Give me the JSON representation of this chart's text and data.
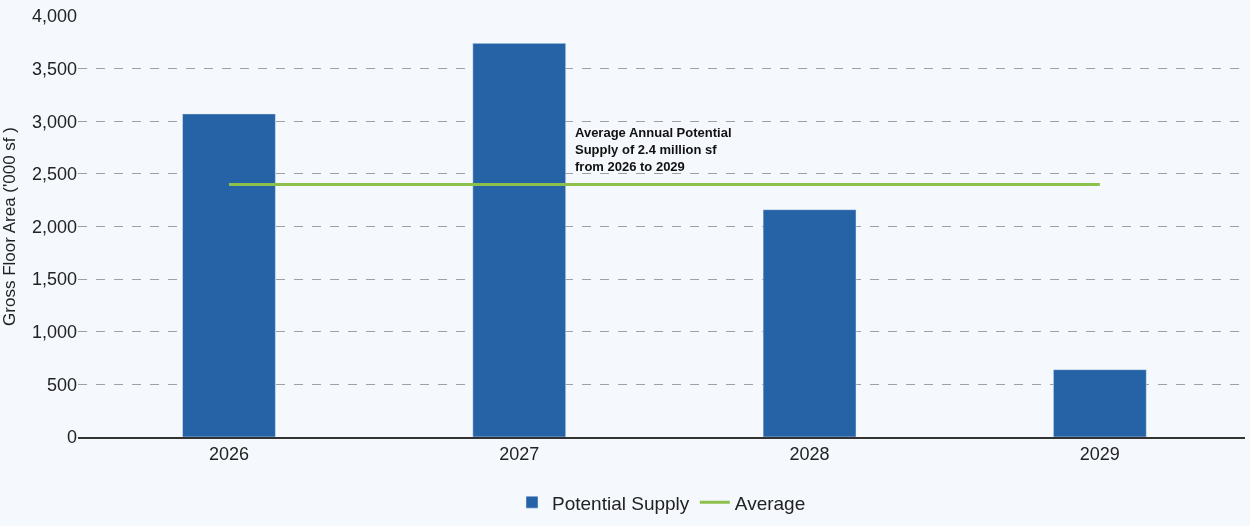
{
  "chart_data": {
    "type": "bar",
    "categories": [
      "2026",
      "2027",
      "2028",
      "2029"
    ],
    "ylabel": "Gross Floor Area ('000 sf )",
    "series": [
      {
        "name": "Potential Supply",
        "color": "#2563a6",
        "values": [
          3070,
          3740,
          2160,
          640
        ]
      },
      {
        "name": "Average",
        "type": "line",
        "color": "#8dc04a",
        "values": [
          2400,
          2400,
          2400,
          2400
        ],
        "marker": "none",
        "line_style": "solid"
      }
    ],
    "ylim": [
      0,
      4000
    ],
    "yticks": [
      {
        "value": 0,
        "label": "0"
      },
      {
        "value": 500,
        "label": "500"
      },
      {
        "value": 1000,
        "label": "1,000"
      },
      {
        "value": 1500,
        "label": "1,500"
      },
      {
        "value": 2000,
        "label": "2,000"
      },
      {
        "value": 2500,
        "label": "2,500"
      },
      {
        "value": 3000,
        "label": "3,000"
      },
      {
        "value": 3500,
        "label": "3,500"
      },
      {
        "value": 4000,
        "label": "4,000"
      }
    ],
    "annotations": [
      "Average Annual Potential\nSupply of 2.4 million sf\nfrom 2026 to 2029"
    ],
    "grid": "y",
    "legend": "bottom"
  }
}
